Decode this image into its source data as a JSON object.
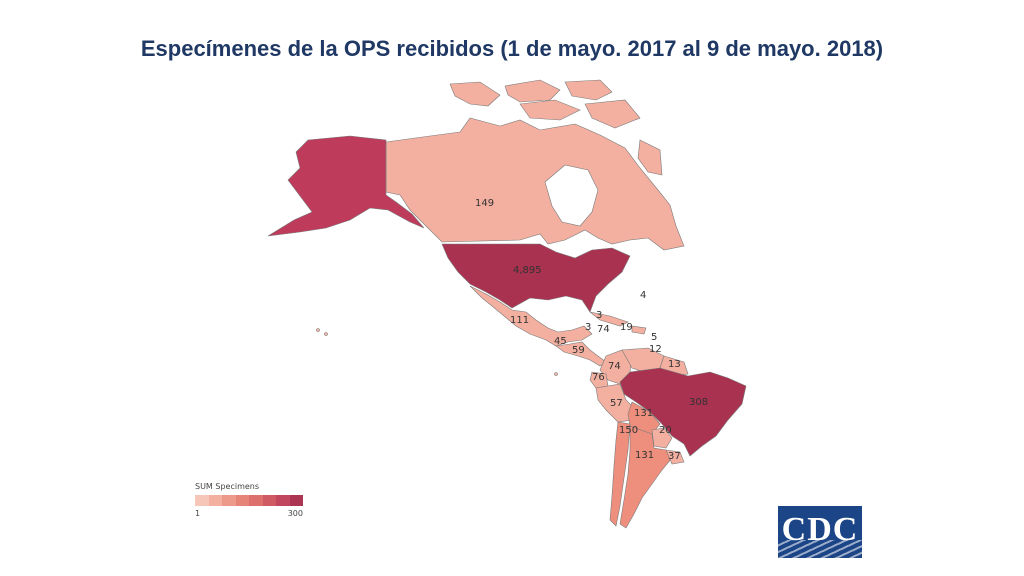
{
  "title": "Especímenes de la OPS recibidos (1 de mayo. 2017 al 9 de mayo. 2018)",
  "map": {
    "colors": {
      "low": "#f3b0a0",
      "light": "#ee8f7e",
      "mid": "#e07870",
      "high": "#be3b5c",
      "top": "#a8324f",
      "border": "#7a7a7a"
    },
    "labels": {
      "canada": "149",
      "usa": "4,895",
      "caribbean_4": "4",
      "mexico": "111",
      "cuba_area_3": "3",
      "belize_3": "3",
      "caribbean_74": "74",
      "caribbean_19": "19",
      "caribbean_5": "5",
      "caribbean_12": "12",
      "guatemala_45": "45",
      "costa_rica_59": "59",
      "venezuela_74": "74",
      "guyana_13": "13",
      "ecuador_76": "76",
      "brazil": "308",
      "peru_57": "57",
      "bolivia_131": "131",
      "chile_150": "150",
      "paraguay_20": "20",
      "argentina_131": "131",
      "uruguay_37": "37"
    }
  },
  "legend": {
    "title": "SUM Specimens",
    "min": "1",
    "max": "300",
    "swatches": [
      "#f6c6b8",
      "#f3b0a0",
      "#ee9a8a",
      "#e68478",
      "#dd6f6c",
      "#cf5a63",
      "#c0475d",
      "#ac3553"
    ]
  },
  "logo": {
    "text": "CDC",
    "color": "#1c4587"
  }
}
